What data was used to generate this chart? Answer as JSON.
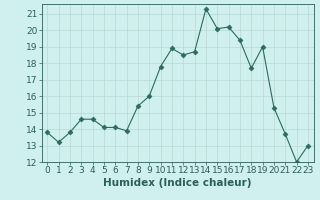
{
  "x": [
    0,
    1,
    2,
    3,
    4,
    5,
    6,
    7,
    8,
    9,
    10,
    11,
    12,
    13,
    14,
    15,
    16,
    17,
    18,
    19,
    20,
    21,
    22,
    23
  ],
  "y": [
    13.8,
    13.2,
    13.8,
    14.6,
    14.6,
    14.1,
    14.1,
    13.9,
    15.4,
    16.0,
    17.8,
    18.9,
    18.5,
    18.7,
    21.3,
    20.1,
    20.2,
    19.4,
    17.7,
    19.0,
    15.3,
    13.7,
    12.0,
    13.0
  ],
  "line_color": "#2d6b5e",
  "marker": "D",
  "marker_size": 2.5,
  "bg_color": "#cff0ee",
  "grid_color": "#b8d8d5",
  "xlabel": "Humidex (Indice chaleur)",
  "xlim": [
    -0.5,
    23.5
  ],
  "ylim": [
    12,
    21.6
  ],
  "yticks": [
    12,
    13,
    14,
    15,
    16,
    17,
    18,
    19,
    20,
    21
  ],
  "xticks": [
    0,
    1,
    2,
    3,
    4,
    5,
    6,
    7,
    8,
    9,
    10,
    11,
    12,
    13,
    14,
    15,
    16,
    17,
    18,
    19,
    20,
    21,
    22,
    23
  ],
  "tick_fontsize": 6.5,
  "xlabel_fontsize": 7.5,
  "tick_color": "#2d5f5a"
}
